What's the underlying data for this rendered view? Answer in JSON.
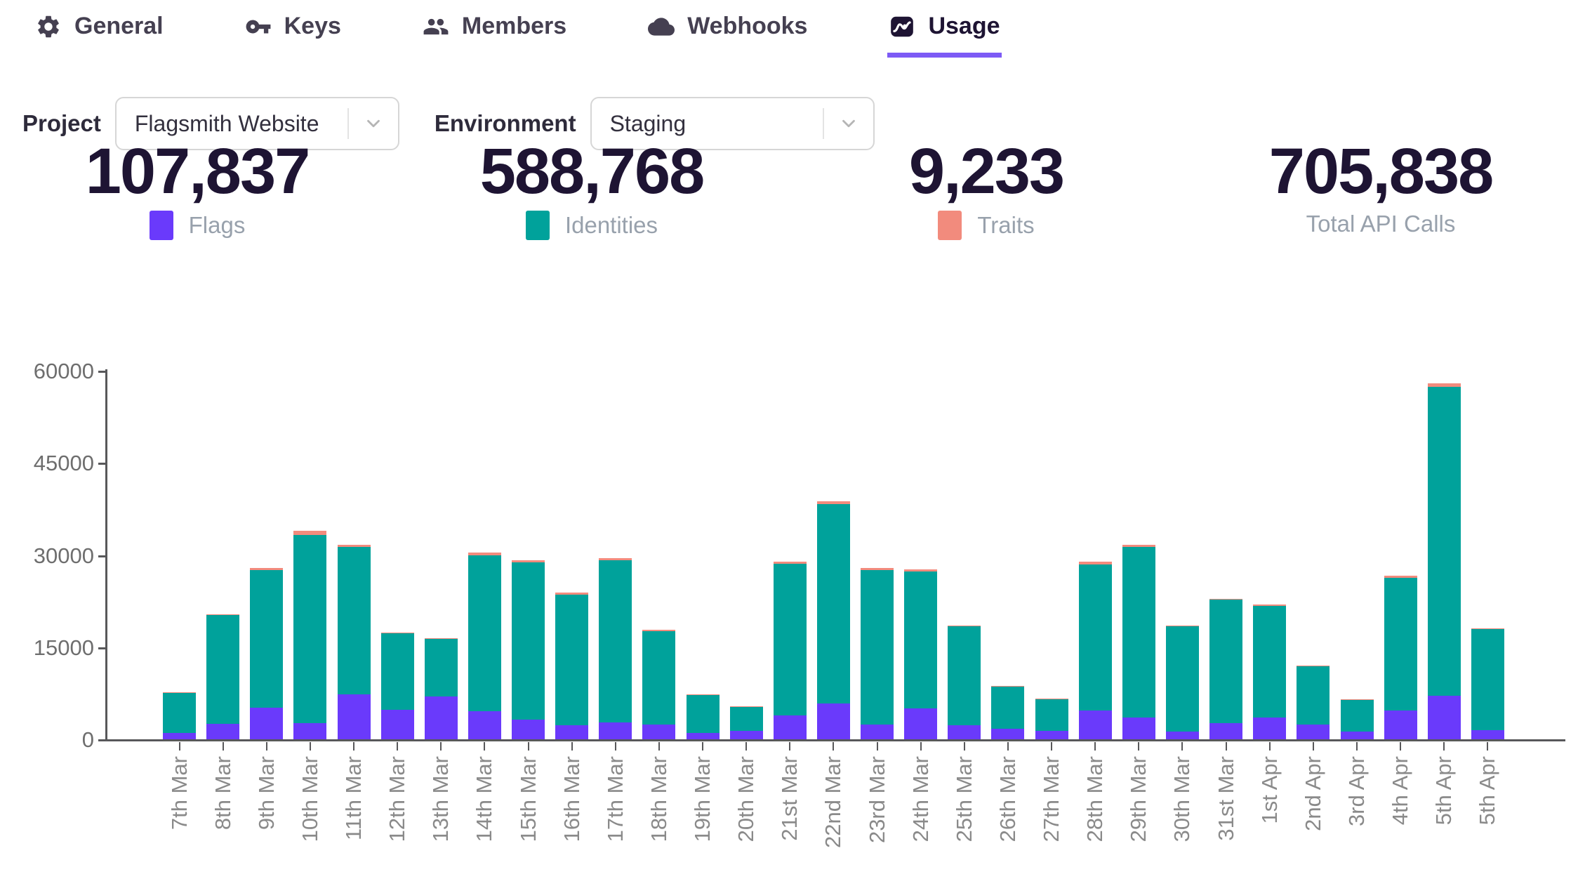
{
  "tabs": [
    {
      "label": "General",
      "icon": "gear-icon",
      "active": false
    },
    {
      "label": "Keys",
      "icon": "key-icon",
      "active": false
    },
    {
      "label": "Members",
      "icon": "members-icon",
      "active": false
    },
    {
      "label": "Webhooks",
      "icon": "cloud-icon",
      "active": false
    },
    {
      "label": "Usage",
      "icon": "chart-icon",
      "active": true
    }
  ],
  "filters": {
    "project_label": "Project",
    "project_value": "Flagsmith Website",
    "environment_label": "Environment",
    "environment_value": "Staging"
  },
  "stats": [
    {
      "value": "107,837",
      "label": "Flags",
      "swatch": "#6A3AFB"
    },
    {
      "value": "588,768",
      "label": "Identities",
      "swatch": "#00A29B"
    },
    {
      "value": "9,233",
      "label": "Traits",
      "swatch": "#F28B7D"
    },
    {
      "value": "705,838",
      "label": "Total API Calls",
      "swatch": ""
    }
  ],
  "chart_data": {
    "type": "bar",
    "stacked": true,
    "title": "",
    "xlabel": "",
    "ylabel": "",
    "ylim": [
      0,
      60000
    ],
    "yticks": [
      0,
      15000,
      30000,
      45000,
      60000
    ],
    "grid": false,
    "legend": "shown-in-stats-row",
    "categories": [
      "7th Mar",
      "8th Mar",
      "9th Mar",
      "10th Mar",
      "11th Mar",
      "12th Mar",
      "13th Mar",
      "14th Mar",
      "15th Mar",
      "16th Mar",
      "17th Mar",
      "18th Mar",
      "19th Mar",
      "20th Mar",
      "21st Mar",
      "22nd Mar",
      "23rd Mar",
      "24th Mar",
      "25th Mar",
      "26th Mar",
      "27th Mar",
      "28th Mar",
      "29th Mar",
      "30th Mar",
      "31st Mar",
      "1st Apr",
      "2nd Apr",
      "3rd Apr",
      "4th Apr",
      "5th Apr",
      "5th Apr"
    ],
    "series": [
      {
        "name": "Flags",
        "color": "#6A3AFB",
        "values": [
          1000,
          2500,
          5200,
          2600,
          7300,
          4800,
          7000,
          4600,
          3200,
          2300,
          2800,
          2400,
          1000,
          1400,
          3900,
          5800,
          2400,
          5000,
          2300,
          1700,
          1400,
          4700,
          3550,
          1300,
          2600,
          3500,
          2400,
          1260,
          4700,
          7100,
          1500
        ]
      },
      {
        "name": "Identities",
        "color": "#00A29B",
        "values": [
          6600,
          17700,
          22400,
          30700,
          24050,
          12450,
          9400,
          25400,
          25600,
          21250,
          26400,
          15250,
          6150,
          3850,
          24650,
          32500,
          25200,
          22350,
          16100,
          6850,
          5150,
          23800,
          27750,
          17050,
          20150,
          18200,
          9500,
          5090,
          21550,
          50300,
          16450
        ]
      },
      {
        "name": "Traits",
        "color": "#F28B7D",
        "values": [
          100,
          200,
          300,
          600,
          350,
          150,
          100,
          400,
          300,
          350,
          300,
          150,
          50,
          50,
          350,
          500,
          300,
          350,
          100,
          50,
          50,
          400,
          400,
          150,
          150,
          200,
          100,
          50,
          350,
          500,
          150
        ]
      }
    ]
  },
  "colors": {
    "accent_underline": "#7D5BF5",
    "bar_purple": "#6A3AFB",
    "bar_teal": "#00A29B",
    "bar_salmon": "#F28B7D",
    "text_dark": "#1E1433",
    "text_gray": "#98A1AC",
    "axis": "#58585a"
  }
}
